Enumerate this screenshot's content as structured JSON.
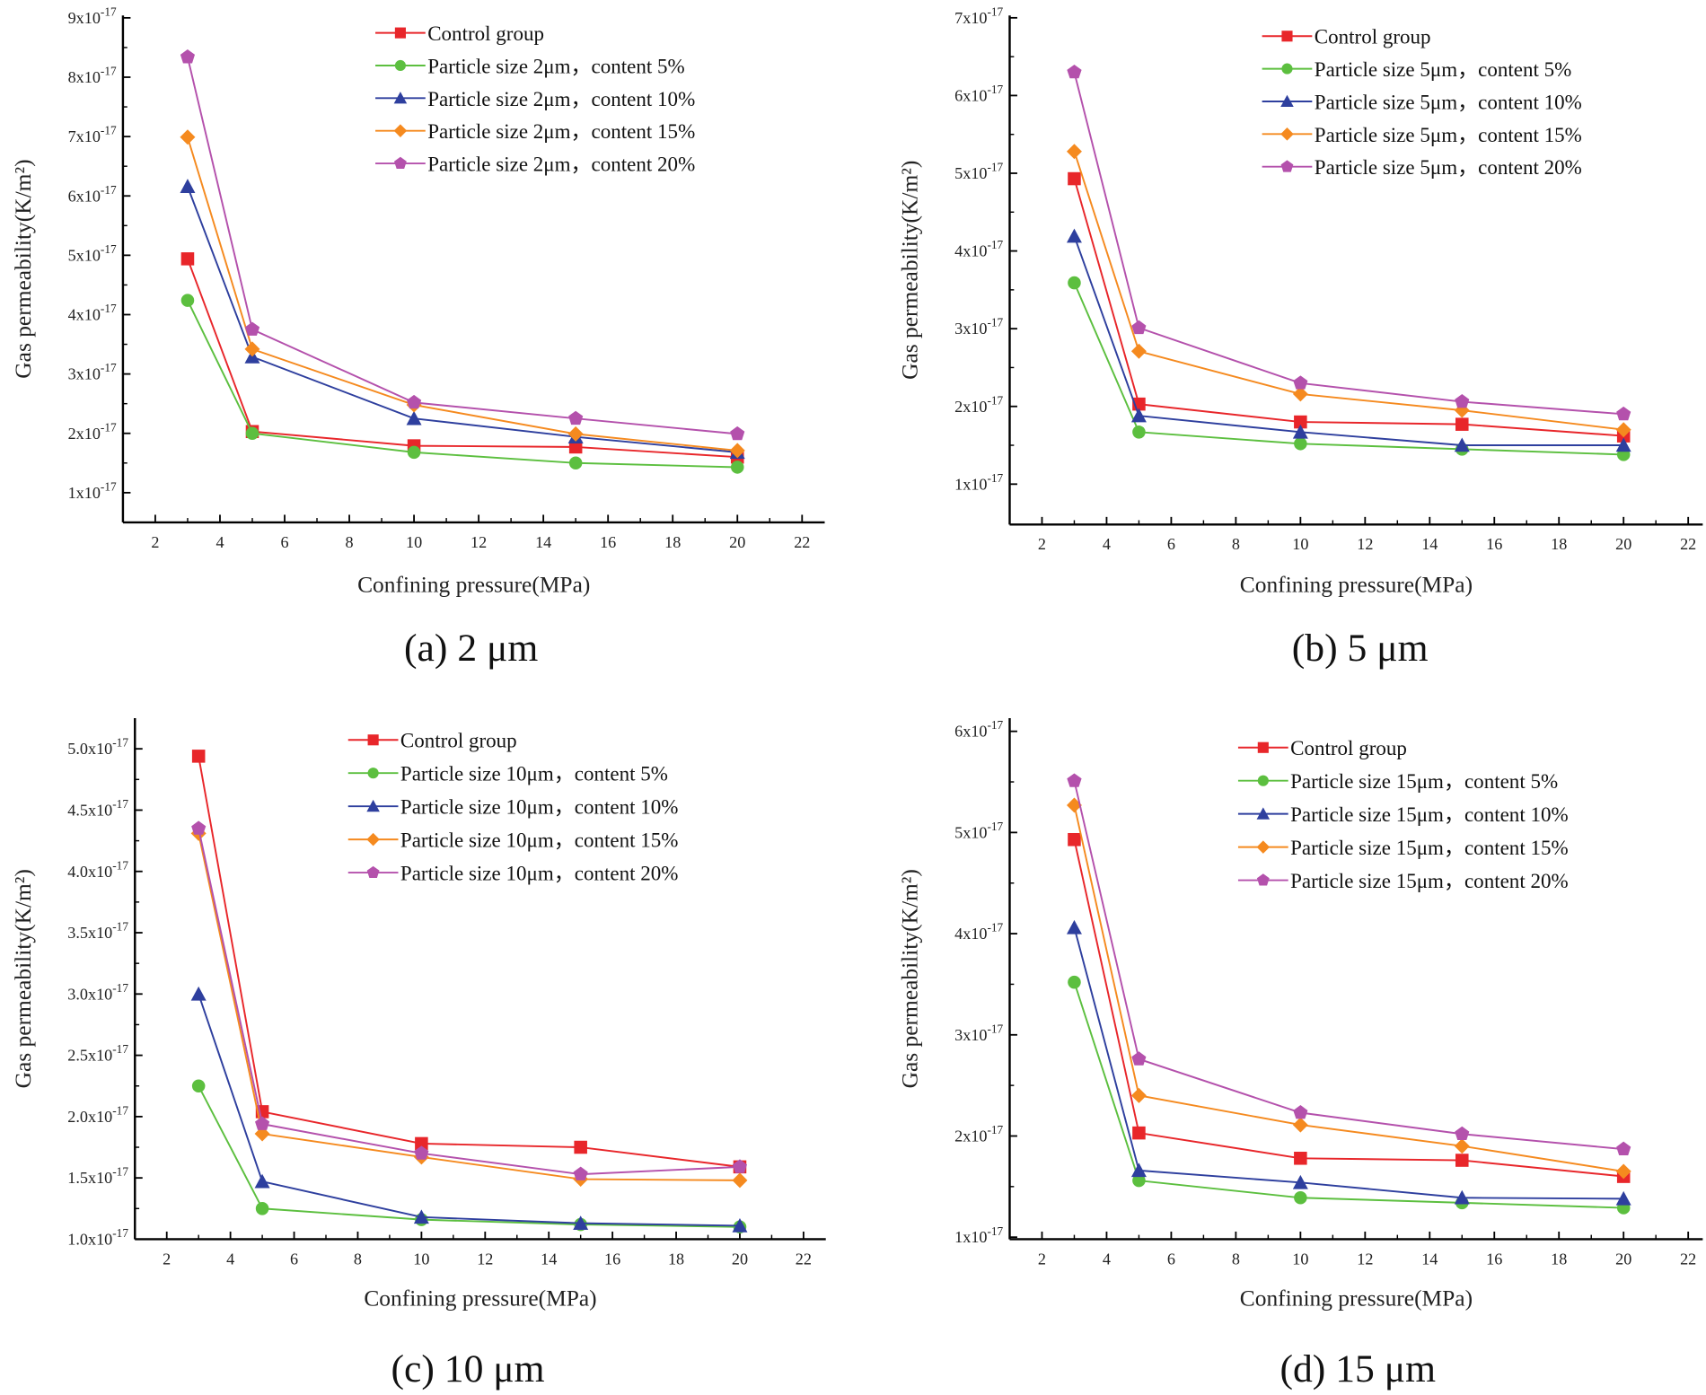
{
  "chart_data": [
    {
      "type": "line",
      "caption": "(a) 2 μm",
      "xlabel": "Confining pressure(MPa)",
      "ylabel": "Gas permeability(K/m²)",
      "y_unit_exponent": "-17",
      "xlim": [
        1,
        22.7
      ],
      "ylim": [
        0.5,
        9.04
      ],
      "xticks": [
        2,
        4,
        6,
        8,
        10,
        12,
        14,
        16,
        18,
        20,
        22
      ],
      "yticks": [
        1,
        2,
        3,
        4,
        5,
        6,
        7,
        8,
        9
      ],
      "ytick_labels": [
        "1x10",
        "2x10",
        "3x10",
        "4x10",
        "5x10",
        "6x10",
        "7x10",
        "8x10",
        "9x10"
      ],
      "legend_position": "top-right",
      "x": [
        3,
        5,
        10,
        15,
        20
      ],
      "series": [
        {
          "name": "Control group",
          "marker": "square",
          "color": "#e8262a",
          "values": [
            4.94,
            2.03,
            1.79,
            1.77,
            1.6
          ]
        },
        {
          "name": "Particle size 2μm，content  5%",
          "marker": "circle",
          "color": "#5cbf3f",
          "values": [
            4.24,
            2.0,
            1.68,
            1.5,
            1.43
          ]
        },
        {
          "name": "Particle size 2μm，content 10%",
          "marker": "triangle",
          "color": "#2e3f9e",
          "values": [
            6.16,
            3.29,
            2.25,
            1.94,
            1.68
          ]
        },
        {
          "name": "Particle size 2μm，content 15%",
          "marker": "diamond",
          "color": "#f58a1f",
          "values": [
            6.99,
            3.42,
            2.48,
            1.99,
            1.71
          ]
        },
        {
          "name": "Particle size 2μm，content 20%",
          "marker": "pentagon",
          "color": "#b451ac",
          "values": [
            8.34,
            3.75,
            2.52,
            2.25,
            1.99
          ]
        }
      ]
    },
    {
      "type": "line",
      "caption": "(b) 5 μm",
      "xlabel": "Confining pressure(MPa)",
      "ylabel": "Gas permeability(K/m²)",
      "y_unit_exponent": "-17",
      "xlim": [
        1,
        22.45
      ],
      "ylim": [
        0.48,
        7.03
      ],
      "xticks": [
        2,
        4,
        6,
        8,
        10,
        12,
        14,
        16,
        18,
        20,
        22
      ],
      "yticks": [
        1,
        2,
        3,
        4,
        5,
        6,
        7
      ],
      "ytick_labels": [
        "1x10",
        "2x10",
        "3x10",
        "4x10",
        "5x10",
        "6x10",
        "7x10"
      ],
      "legend_position": "top-right",
      "x": [
        3,
        5,
        10,
        15,
        20
      ],
      "series": [
        {
          "name": "Control group",
          "marker": "square",
          "color": "#e8262a",
          "values": [
            4.93,
            2.03,
            1.8,
            1.77,
            1.62
          ]
        },
        {
          "name": "Particle size 5μm，content  5%",
          "marker": "circle",
          "color": "#5cbf3f",
          "values": [
            3.59,
            1.67,
            1.52,
            1.45,
            1.38
          ]
        },
        {
          "name": "Particle size 5μm，content 10%",
          "marker": "triangle",
          "color": "#2e3f9e",
          "values": [
            4.19,
            1.88,
            1.67,
            1.5,
            1.5
          ]
        },
        {
          "name": "Particle size 5μm，content 15%",
          "marker": "diamond",
          "color": "#f58a1f",
          "values": [
            5.28,
            2.71,
            2.16,
            1.95,
            1.7
          ]
        },
        {
          "name": "Particle size 5μm，content 20%",
          "marker": "pentagon",
          "color": "#b451ac",
          "values": [
            6.3,
            3.01,
            2.3,
            2.06,
            1.9
          ]
        }
      ]
    },
    {
      "type": "line",
      "caption": "(c) 10 μm",
      "xlabel": "Confining pressure(MPa)",
      "ylabel": "Gas permeability(K/m²)",
      "y_unit_exponent": "-17",
      "xlim": [
        1,
        22.7
      ],
      "ylim": [
        1,
        5.25
      ],
      "xticks": [
        2,
        4,
        6,
        8,
        10,
        12,
        14,
        16,
        18,
        20,
        22
      ],
      "yticks": [
        1.0,
        1.5,
        2.0,
        2.5,
        3.0,
        3.5,
        4.0,
        4.5,
        5.0
      ],
      "ytick_labels": [
        "1.0x10",
        "1.5x10",
        "2.0x10",
        "2.5x10",
        "3.0x10",
        "3.5x10",
        "4.0x10",
        "4.5x10",
        "5.0x10"
      ],
      "legend_position": "top-right",
      "x": [
        3,
        5,
        10,
        15,
        20
      ],
      "series": [
        {
          "name": "Control group",
          "marker": "square",
          "color": "#e8262a",
          "values": [
            4.94,
            2.04,
            1.78,
            1.75,
            1.59
          ]
        },
        {
          "name": "Particle  size 10μm，content  5%",
          "marker": "circle",
          "color": "#5cbf3f",
          "values": [
            2.25,
            1.25,
            1.16,
            1.12,
            1.1
          ]
        },
        {
          "name": "Particle  size 10μm，content 10%",
          "marker": "triangle",
          "color": "#2e3f9e",
          "values": [
            3.0,
            1.47,
            1.18,
            1.13,
            1.11
          ]
        },
        {
          "name": "Particle  size 10μm，content 15%",
          "marker": "diamond",
          "color": "#f58a1f",
          "values": [
            4.31,
            1.86,
            1.67,
            1.49,
            1.48
          ]
        },
        {
          "name": "Particle  size 10μm，content 20%",
          "marker": "pentagon",
          "color": "#b451ac",
          "values": [
            4.35,
            1.94,
            1.7,
            1.53,
            1.59
          ]
        }
      ]
    },
    {
      "type": "line",
      "caption": "(d) 15 μm",
      "xlabel": "Confining pressure(MPa)",
      "ylabel": "Gas permeability(K/m²)",
      "y_unit_exponent": "-17",
      "xlim": [
        1,
        22.45
      ],
      "ylim": [
        0.98,
        6.13
      ],
      "xticks": [
        2,
        4,
        6,
        8,
        10,
        12,
        14,
        16,
        18,
        20,
        22
      ],
      "yticks": [
        1,
        2,
        3,
        4,
        5,
        6
      ],
      "ytick_labels": [
        "1x10",
        "2x10",
        "3x10",
        "4x10",
        "5x10",
        "6x10"
      ],
      "legend_position": "top-right",
      "x": [
        3,
        5,
        10,
        15,
        20
      ],
      "series": [
        {
          "name": "Control group",
          "marker": "square",
          "color": "#e8262a",
          "values": [
            4.93,
            2.03,
            1.78,
            1.76,
            1.6
          ]
        },
        {
          "name": "Particle  size 15μm，content  5%",
          "marker": "circle",
          "color": "#5cbf3f",
          "values": [
            3.52,
            1.56,
            1.39,
            1.34,
            1.29
          ]
        },
        {
          "name": "Particle  size 15μm，content 10%",
          "marker": "triangle",
          "color": "#2e3f9e",
          "values": [
            4.06,
            1.66,
            1.54,
            1.39,
            1.38
          ]
        },
        {
          "name": "Particle  size 15μm，content 15%",
          "marker": "diamond",
          "color": "#f58a1f",
          "values": [
            5.27,
            2.4,
            2.11,
            1.9,
            1.65
          ]
        },
        {
          "name": "Particle  size 15μm，content 20%",
          "marker": "pentagon",
          "color": "#b451ac",
          "values": [
            5.51,
            2.76,
            2.23,
            2.02,
            1.87
          ]
        }
      ]
    }
  ]
}
